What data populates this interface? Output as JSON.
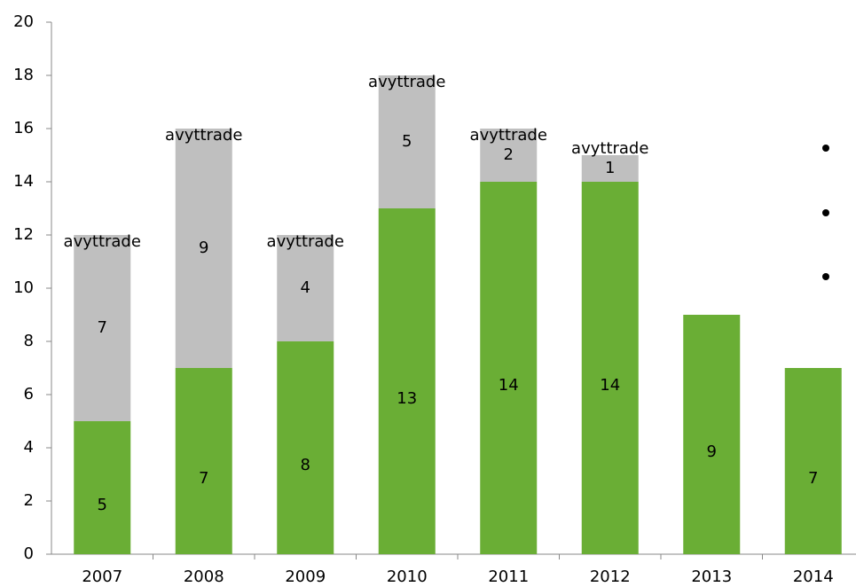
{
  "chart_data": {
    "type": "stacked_bar",
    "categories": [
      "2007",
      "2008",
      "2009",
      "2010",
      "2011",
      "2012",
      "2013",
      "2014"
    ],
    "series": [
      {
        "color": "#6aae35",
        "values": [
          5,
          7,
          8,
          13,
          14,
          14,
          9,
          7
        ]
      },
      {
        "name": "avyttrade",
        "color": "#bfbfbf",
        "values": [
          7,
          9,
          4,
          5,
          2,
          1,
          null,
          null
        ]
      }
    ],
    "ylim": [
      0,
      20
    ],
    "yticks": [
      0,
      2,
      4,
      6,
      8,
      10,
      12,
      14,
      16,
      18,
      20
    ],
    "grid": false
  }
}
